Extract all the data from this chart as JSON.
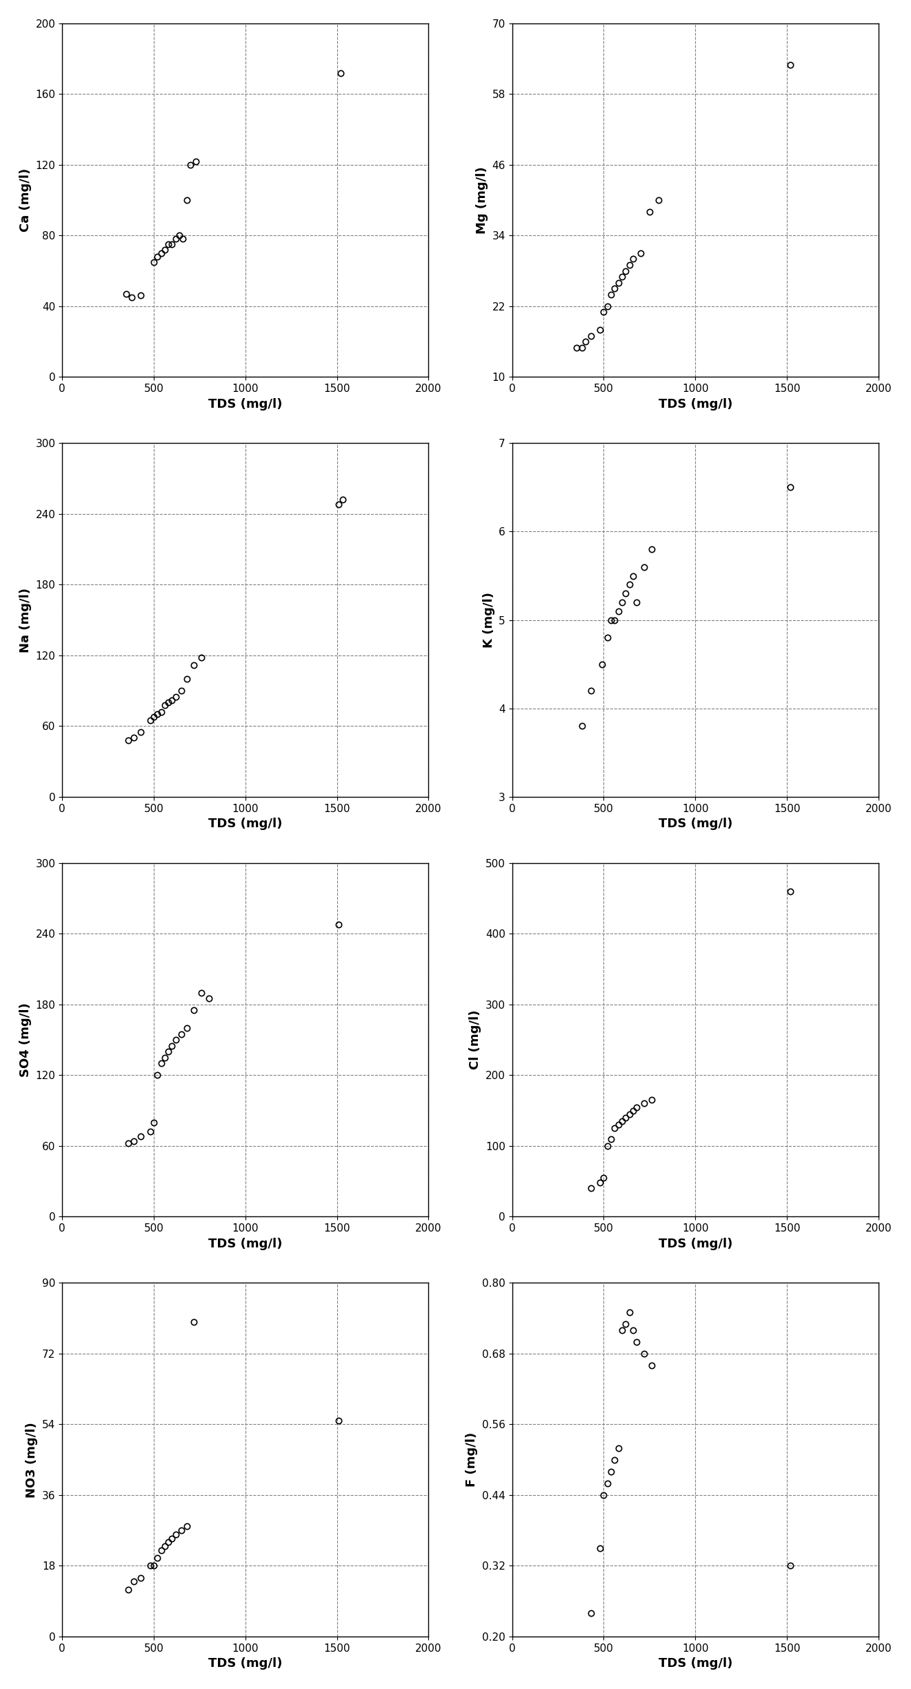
{
  "panels": [
    {
      "ylabel": "Ca (mg/l)",
      "xlabel": "TDS (mg/l)",
      "xlim": [
        0,
        2000
      ],
      "ylim": [
        0,
        200
      ],
      "xticks": [
        0,
        500,
        1000,
        1500,
        2000
      ],
      "yticks": [
        0,
        40,
        80,
        120,
        160,
        200
      ],
      "x": [
        350,
        380,
        430,
        500,
        520,
        540,
        560,
        580,
        600,
        620,
        640,
        660,
        680,
        700,
        730,
        1520
      ],
      "y": [
        47,
        45,
        46,
        65,
        68,
        70,
        72,
        75,
        75,
        78,
        80,
        78,
        100,
        120,
        122,
        172
      ]
    },
    {
      "ylabel": "Mg (mg/l)",
      "xlabel": "TDS (mg/l)",
      "xlim": [
        0,
        2000
      ],
      "ylim": [
        10,
        70
      ],
      "xticks": [
        0,
        500,
        1000,
        1500,
        2000
      ],
      "yticks": [
        10,
        22,
        34,
        46,
        58,
        70
      ],
      "x": [
        350,
        380,
        400,
        430,
        480,
        500,
        520,
        540,
        560,
        580,
        600,
        620,
        640,
        660,
        700,
        750,
        800,
        1520
      ],
      "y": [
        15,
        15,
        16,
        17,
        18,
        21,
        22,
        24,
        25,
        26,
        27,
        28,
        29,
        30,
        31,
        38,
        40,
        63
      ]
    },
    {
      "ylabel": "Na (mg/l)",
      "xlabel": "TDS (mg/l)",
      "xlim": [
        0,
        2000
      ],
      "ylim": [
        0,
        300
      ],
      "xticks": [
        0,
        500,
        1000,
        1500,
        2000
      ],
      "yticks": [
        0,
        60,
        120,
        180,
        240,
        300
      ],
      "x": [
        360,
        390,
        430,
        480,
        500,
        520,
        540,
        560,
        580,
        600,
        620,
        650,
        680,
        720,
        760,
        1510,
        1530
      ],
      "y": [
        48,
        50,
        55,
        65,
        68,
        70,
        72,
        78,
        80,
        82,
        85,
        90,
        100,
        112,
        118,
        248,
        252
      ]
    },
    {
      "ylabel": "K (mg/l)",
      "xlabel": "TDS (mg/l)",
      "xlim": [
        0,
        2000
      ],
      "ylim": [
        3,
        7
      ],
      "xticks": [
        0,
        500,
        1000,
        1500,
        2000
      ],
      "yticks": [
        3,
        4,
        5,
        6,
        7
      ],
      "x": [
        380,
        430,
        490,
        520,
        540,
        560,
        580,
        600,
        620,
        640,
        660,
        680,
        720,
        760,
        1520
      ],
      "y": [
        3.8,
        4.2,
        4.5,
        4.8,
        5.0,
        5.0,
        5.1,
        5.2,
        5.3,
        5.4,
        5.5,
        5.2,
        5.6,
        5.8,
        6.5
      ]
    },
    {
      "ylabel": "SO4 (mg/l)",
      "xlabel": "TDS (mg/l)",
      "xlim": [
        0,
        2000
      ],
      "ylim": [
        0,
        300
      ],
      "xticks": [
        0,
        500,
        1000,
        1500,
        2000
      ],
      "yticks": [
        0,
        60,
        120,
        180,
        240,
        300
      ],
      "x": [
        360,
        390,
        430,
        480,
        500,
        520,
        540,
        560,
        580,
        600,
        620,
        650,
        680,
        720,
        760,
        800,
        1510
      ],
      "y": [
        62,
        64,
        68,
        72,
        80,
        120,
        130,
        135,
        140,
        145,
        150,
        155,
        160,
        175,
        190,
        185,
        248
      ]
    },
    {
      "ylabel": "Cl (mg/l)",
      "xlabel": "TDS (mg/l)",
      "xlim": [
        0,
        2000
      ],
      "ylim": [
        0,
        500
      ],
      "xticks": [
        0,
        500,
        1000,
        1500,
        2000
      ],
      "yticks": [
        0,
        100,
        200,
        300,
        400,
        500
      ],
      "x": [
        430,
        480,
        500,
        520,
        540,
        560,
        580,
        600,
        620,
        640,
        660,
        680,
        720,
        760,
        1520
      ],
      "y": [
        40,
        48,
        55,
        100,
        110,
        125,
        130,
        135,
        140,
        145,
        150,
        155,
        160,
        165,
        460
      ]
    },
    {
      "ylabel": "NO3 (mg/l)",
      "xlabel": "TDS (mg/l)",
      "xlim": [
        0,
        2000
      ],
      "ylim": [
        0,
        90
      ],
      "xticks": [
        0,
        500,
        1000,
        1500,
        2000
      ],
      "yticks": [
        0,
        18,
        36,
        54,
        72,
        90
      ],
      "x": [
        360,
        390,
        430,
        480,
        500,
        520,
        540,
        560,
        580,
        600,
        620,
        650,
        680,
        720,
        1510
      ],
      "y": [
        12,
        14,
        15,
        18,
        18,
        20,
        22,
        23,
        24,
        25,
        26,
        27,
        28,
        80,
        55
      ]
    },
    {
      "ylabel": "F (mg/l)",
      "xlabel": "TDS (mg/l)",
      "xlim": [
        0,
        2000
      ],
      "ylim": [
        0.2,
        0.8
      ],
      "xticks": [
        0,
        500,
        1000,
        1500,
        2000
      ],
      "yticks": [
        0.2,
        0.32,
        0.44,
        0.56,
        0.68,
        0.8
      ],
      "x": [
        430,
        480,
        500,
        520,
        540,
        560,
        580,
        600,
        620,
        640,
        660,
        680,
        720,
        760,
        1520
      ],
      "y": [
        0.24,
        0.35,
        0.44,
        0.46,
        0.48,
        0.5,
        0.52,
        0.72,
        0.73,
        0.75,
        0.72,
        0.7,
        0.68,
        0.66,
        0.32
      ]
    }
  ],
  "marker_style": "o",
  "marker_size": 6,
  "marker_color": "black",
  "marker_facecolor": "none",
  "grid_linestyle": "--",
  "grid_color": "gray",
  "grid_linewidth": 0.8,
  "tick_labelsize": 11,
  "axis_labelsize": 13,
  "background_color": "white"
}
